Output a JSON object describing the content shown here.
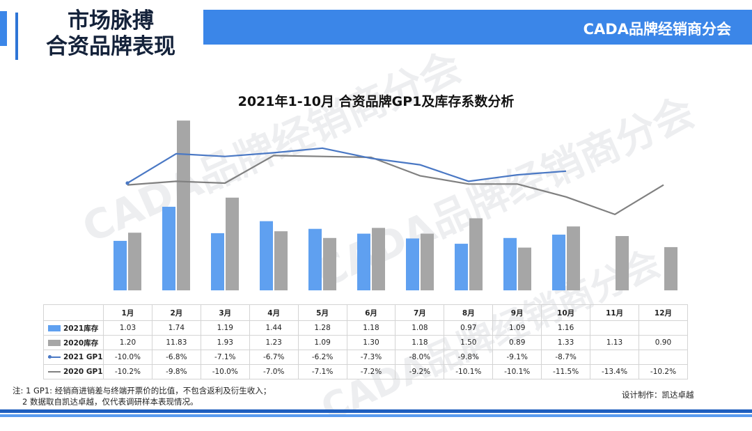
{
  "header": {
    "section_title_line1": "市场脉搏",
    "section_title_line2": "合资品牌表现",
    "brand": "CADA品牌经销商分会"
  },
  "watermark_text": "CADA品牌经销商分会",
  "colors": {
    "accent": "#3b86e8",
    "inv2021": "#5fa0f0",
    "inv2020": "#a6a6a6",
    "gp2021": "#4a78c4",
    "gp2020": "#808080"
  },
  "chart_data": {
    "type": "bar+line",
    "title": "2021年1-10月 合资品牌GP1及库存系数分析",
    "categories": [
      "1月",
      "2月",
      "3月",
      "4月",
      "5月",
      "6月",
      "7月",
      "8月",
      "9月",
      "10月",
      "11月",
      "12月"
    ],
    "series": [
      {
        "name": "2021库存",
        "kind": "bar",
        "values": [
          1.03,
          1.74,
          1.19,
          1.44,
          1.28,
          1.18,
          1.08,
          0.97,
          1.09,
          1.16,
          null,
          null
        ],
        "labels": [
          "1.03",
          "1.74",
          "1.19",
          "1.44",
          "1.28",
          "1.18",
          "1.08",
          "0.97",
          "1.09",
          "1.16",
          "",
          ""
        ]
      },
      {
        "name": "2020库存",
        "kind": "bar",
        "values": [
          1.2,
          11.83,
          1.93,
          1.23,
          1.09,
          1.3,
          1.18,
          1.5,
          0.89,
          1.33,
          1.13,
          0.9
        ],
        "labels": [
          "1.20",
          "11.83",
          "1.93",
          "1.23",
          "1.09",
          "1.30",
          "1.18",
          "1.50",
          "0.89",
          "1.33",
          "1.13",
          "0.90"
        ]
      },
      {
        "name": "2021 GP1",
        "kind": "line",
        "values": [
          -10.0,
          -6.8,
          -7.1,
          -6.7,
          -6.2,
          -7.3,
          -8.0,
          -9.8,
          -9.1,
          -8.7,
          null,
          null
        ],
        "labels": [
          "-10.0%",
          "-6.8%",
          "-7.1%",
          "-6.7%",
          "-6.2%",
          "-7.3%",
          "-8.0%",
          "-9.8%",
          "-9.1%",
          "-8.7%",
          "",
          ""
        ]
      },
      {
        "name": "2020 GP1",
        "kind": "line",
        "values": [
          -10.2,
          -9.8,
          -10.0,
          -7.0,
          -7.1,
          -7.2,
          -9.2,
          -10.1,
          -10.1,
          -11.5,
          -13.4,
          -10.2
        ],
        "labels": [
          "-10.2%",
          "-9.8%",
          "-10.0%",
          "-7.0%",
          "-7.1%",
          "-7.2%",
          "-9.2%",
          "-10.1%",
          "-10.1%",
          "-11.5%",
          "-13.4%",
          "-10.2%"
        ]
      }
    ]
  },
  "footnote": {
    "line1": "注: 1 GP1: 经销商进销差与终端开票价的比值，不包含返利及衍生收入；",
    "line2": "2 数据取自凯达卓越，仅代表调研样本表现情况。"
  },
  "credit": "设计制作：凯达卓越"
}
